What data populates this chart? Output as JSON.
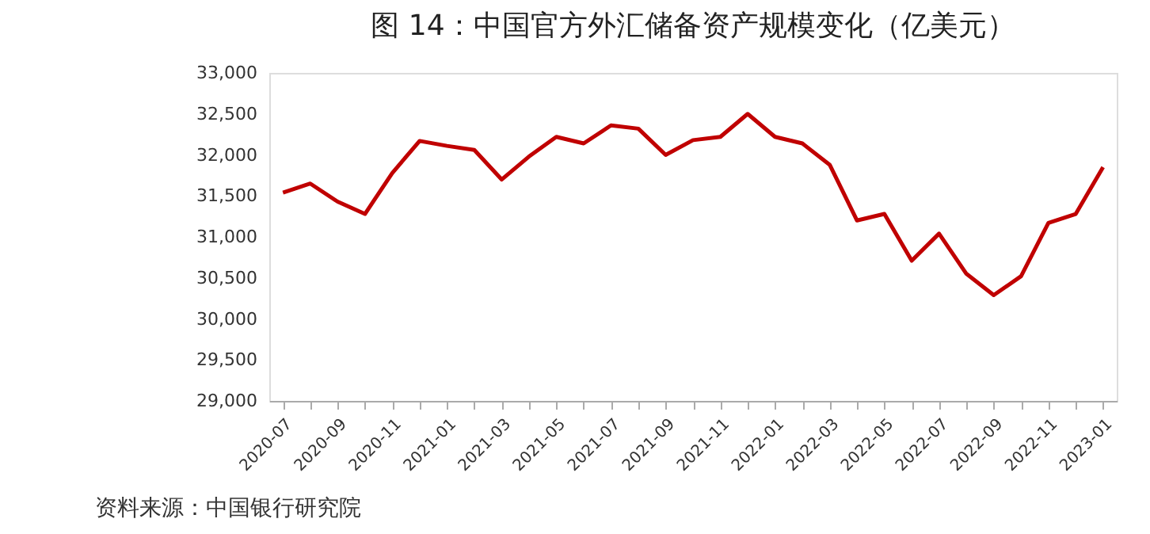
{
  "chart_data": {
    "type": "line",
    "title": "图 14：中国官方外汇储备资产规模变化（亿美元）",
    "categories": [
      "2020-07",
      null,
      "2020-09",
      null,
      "2020-11",
      null,
      "2021-01",
      null,
      "2021-03",
      null,
      "2021-05",
      null,
      "2021-07",
      null,
      "2021-09",
      null,
      "2021-11",
      null,
      "2022-01",
      null,
      "2022-03",
      null,
      "2022-05",
      null,
      "2022-07",
      null,
      "2022-09",
      null,
      "2022-11",
      null,
      "2023-01"
    ],
    "series": [
      {
        "color": "#c00000",
        "values": [
          31540,
          31650,
          31430,
          31280,
          31780,
          32170,
          32110,
          32060,
          31700,
          31980,
          32220,
          32140,
          32360,
          32320,
          32000,
          32180,
          32220,
          32500,
          32220,
          32140,
          31880,
          31200,
          31280,
          30710,
          31040,
          30550,
          30290,
          30520,
          31170,
          31280,
          31850
        ]
      }
    ],
    "ylim": [
      29000,
      33000
    ],
    "yticks": [
      {
        "value": 29000,
        "label": "29,000"
      },
      {
        "value": 29500,
        "label": "29,500"
      },
      {
        "value": 30000,
        "label": "30,000"
      },
      {
        "value": 30500,
        "label": "30,500"
      },
      {
        "value": 31000,
        "label": "31,000"
      },
      {
        "value": 31500,
        "label": "31,500"
      },
      {
        "value": 32000,
        "label": "32,000"
      },
      {
        "value": 32500,
        "label": "32,500"
      },
      {
        "value": 33000,
        "label": "33,000"
      }
    ],
    "grid": false,
    "marker": "none",
    "line_style": "solid",
    "annotations": [
      "资料来源：中国银行研究院"
    ]
  }
}
